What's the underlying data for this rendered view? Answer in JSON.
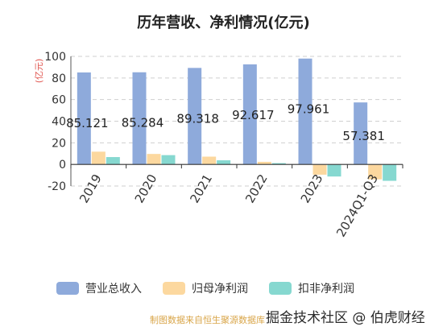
{
  "chart_data": {
    "type": "bar",
    "title": "历年营收、净利情况(亿元)",
    "ylabel": "(亿元)",
    "ylim": [
      -20,
      100
    ],
    "yticks": [
      -20,
      0,
      20,
      40,
      60,
      80,
      100
    ],
    "grid": true,
    "legend_position": "bottom",
    "categories": [
      "2019",
      "2020",
      "2021",
      "2022",
      "2023",
      "2024Q1-Q3"
    ],
    "series": [
      {
        "name": "营业总收入",
        "color": "#8eaadb",
        "values": [
          85.121,
          85.284,
          89.318,
          92.617,
          97.961,
          57.381
        ],
        "labels": [
          "85.121",
          "85.284",
          "89.318",
          "92.617",
          "97.961",
          "57.381"
        ]
      },
      {
        "name": "归母净利润",
        "color": "#fcd89f",
        "values": [
          11.8,
          9.7,
          7.2,
          2.4,
          -9.5,
          -13.8
        ]
      },
      {
        "name": "扣非净利润",
        "color": "#86d8d0",
        "values": [
          6.8,
          8.6,
          3.8,
          1.2,
          -11.2,
          -15.2
        ]
      }
    ]
  },
  "source_note": "制图数据来自恒生聚源数据库",
  "watermark": "掘金技术社区 @ 伯虎财经"
}
